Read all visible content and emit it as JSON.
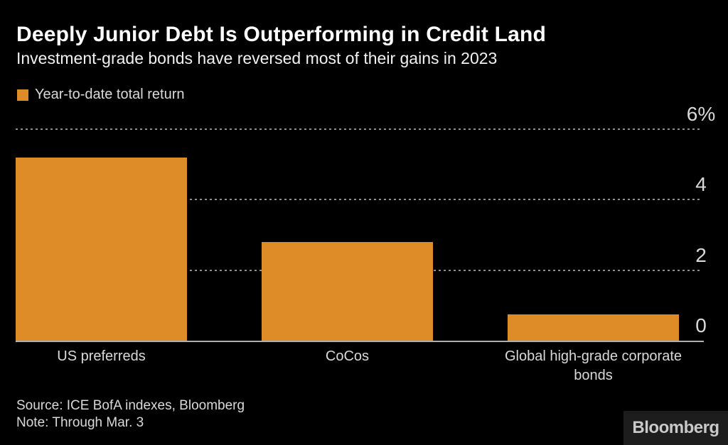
{
  "header": {
    "title": "Deeply Junior Debt Is Outperforming in Credit Land",
    "subtitle": "Investment-grade bonds have reversed most of their gains in 2023"
  },
  "legend": {
    "label": "Year-to-date total return",
    "swatch_color": "#de8c28"
  },
  "chart_data": {
    "type": "bar",
    "title": "Deeply Junior Debt Is Outperforming in Credit Land",
    "subtitle": "Investment-grade bonds have reversed most of their gains in 2023",
    "series_name": "Year-to-date total return",
    "categories": [
      "US preferreds",
      "CoCos",
      "Global high-grade corporate bonds"
    ],
    "values": [
      5.2,
      2.8,
      0.75
    ],
    "unit": "%",
    "xlabel": "",
    "ylabel": "",
    "ylim": [
      0,
      6
    ],
    "yticks": [
      6,
      4,
      2,
      0
    ],
    "ytick_labels": [
      "6%",
      "4",
      "2",
      "0"
    ],
    "tick_label_side": "right",
    "grid": "horizontal-dotted",
    "bar_color": "#de8c28",
    "background_color": "#000000"
  },
  "footer": {
    "source": "Source: ICE BofA indexes, Bloomberg",
    "note": "Note: Through Mar. 3",
    "brand": "Bloomberg"
  }
}
